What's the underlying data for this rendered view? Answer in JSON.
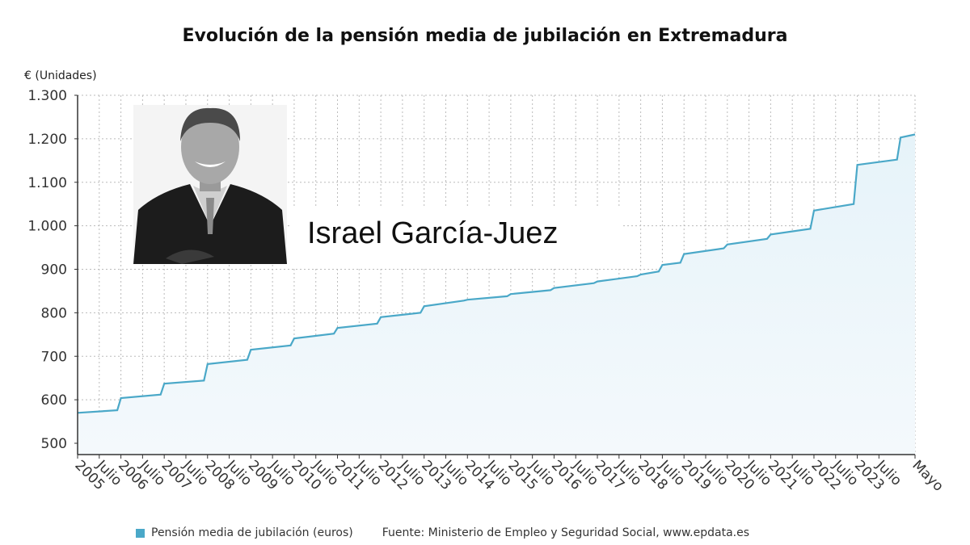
{
  "chart_data": {
    "type": "area",
    "title": "Evolución de la pensión media de jubilación en Extremadura",
    "ylabel": "€ (Unidades)",
    "xlabel": "",
    "ylim": [
      475,
      1300
    ],
    "yticks": [
      500,
      600,
      700,
      800,
      900,
      1000,
      1100,
      1200,
      1300
    ],
    "ytick_labels": [
      "500",
      "600",
      "700",
      "800",
      "900",
      "1.000",
      "1.100",
      "1.200",
      "1.300"
    ],
    "x_range_months": [
      "2005-01",
      "2024-05"
    ],
    "xtick_labels": [
      "2005",
      "Julio",
      "2006",
      "Julio",
      "2007",
      "Julio",
      "2008",
      "Julio",
      "2009",
      "Julio",
      "2010",
      "Julio",
      "2011",
      "Julio",
      "2012",
      "Julio",
      "2013",
      "Julio",
      "2014",
      "Julio",
      "2015",
      "Julio",
      "2016",
      "Julio",
      "2017",
      "Julio",
      "2018",
      "Julio",
      "2019",
      "Julio",
      "2020",
      "Julio",
      "2021",
      "Julio",
      "2022",
      "Julio",
      "2023",
      "Julio",
      "Mayo"
    ],
    "grid": true,
    "legend_position": "bottom-left",
    "series": [
      {
        "name": "Pensión media de jubilación (euros)",
        "color": "#4aa8c8",
        "points": [
          [
            "2005-01",
            570
          ],
          [
            "2005-12",
            576
          ],
          [
            "2006-01",
            604
          ],
          [
            "2006-12",
            612
          ],
          [
            "2007-01",
            637
          ],
          [
            "2007-12",
            644
          ],
          [
            "2008-01",
            682
          ],
          [
            "2008-12",
            692
          ],
          [
            "2009-01",
            715
          ],
          [
            "2009-12",
            725
          ],
          [
            "2010-01",
            741
          ],
          [
            "2010-12",
            752
          ],
          [
            "2011-01",
            765
          ],
          [
            "2011-12",
            775
          ],
          [
            "2012-01",
            790
          ],
          [
            "2012-12",
            800
          ],
          [
            "2013-01",
            815
          ],
          [
            "2013-12",
            828
          ],
          [
            "2014-01",
            830
          ],
          [
            "2014-12",
            838
          ],
          [
            "2015-01",
            843
          ],
          [
            "2015-12",
            852
          ],
          [
            "2016-01",
            857
          ],
          [
            "2016-12",
            868
          ],
          [
            "2017-01",
            872
          ],
          [
            "2017-12",
            884
          ],
          [
            "2018-01",
            888
          ],
          [
            "2018-06",
            895
          ],
          [
            "2018-07",
            910
          ],
          [
            "2018-12",
            915
          ],
          [
            "2019-01",
            935
          ],
          [
            "2019-12",
            948
          ],
          [
            "2020-01",
            957
          ],
          [
            "2020-12",
            970
          ],
          [
            "2021-01",
            980
          ],
          [
            "2021-12",
            993
          ],
          [
            "2022-01",
            1035
          ],
          [
            "2022-12",
            1050
          ],
          [
            "2023-01",
            1140
          ],
          [
            "2023-12",
            1152
          ],
          [
            "2024-01",
            1203
          ],
          [
            "2024-05",
            1210
          ]
        ]
      }
    ]
  },
  "overlay": {
    "name": "Israel García-Juez"
  },
  "legend": {
    "label": "Pensión media de jubilación (euros)",
    "source": "Fuente: Ministerio de Empleo y Seguridad Social, www.epdata.es"
  }
}
